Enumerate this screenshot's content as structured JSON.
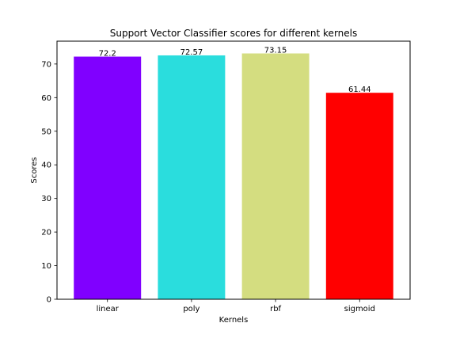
{
  "chart_data": {
    "type": "bar",
    "title": "Support Vector Classifier scores for different kernels",
    "xlabel": "Kernels",
    "ylabel": "Scores",
    "categories": [
      "linear",
      "poly",
      "rbf",
      "sigmoid"
    ],
    "values": [
      72.2,
      72.57,
      73.15,
      61.44
    ],
    "data_labels": [
      "72.2",
      "72.57",
      "73.15",
      "61.44"
    ],
    "colors": [
      "#8000ff",
      "#2adddd",
      "#d4dd80",
      "#ff0000"
    ],
    "ylim": [
      0,
      76.8
    ],
    "yticks": [
      0,
      10,
      20,
      30,
      40,
      50,
      60,
      70
    ],
    "grid": false,
    "legend": "none"
  }
}
